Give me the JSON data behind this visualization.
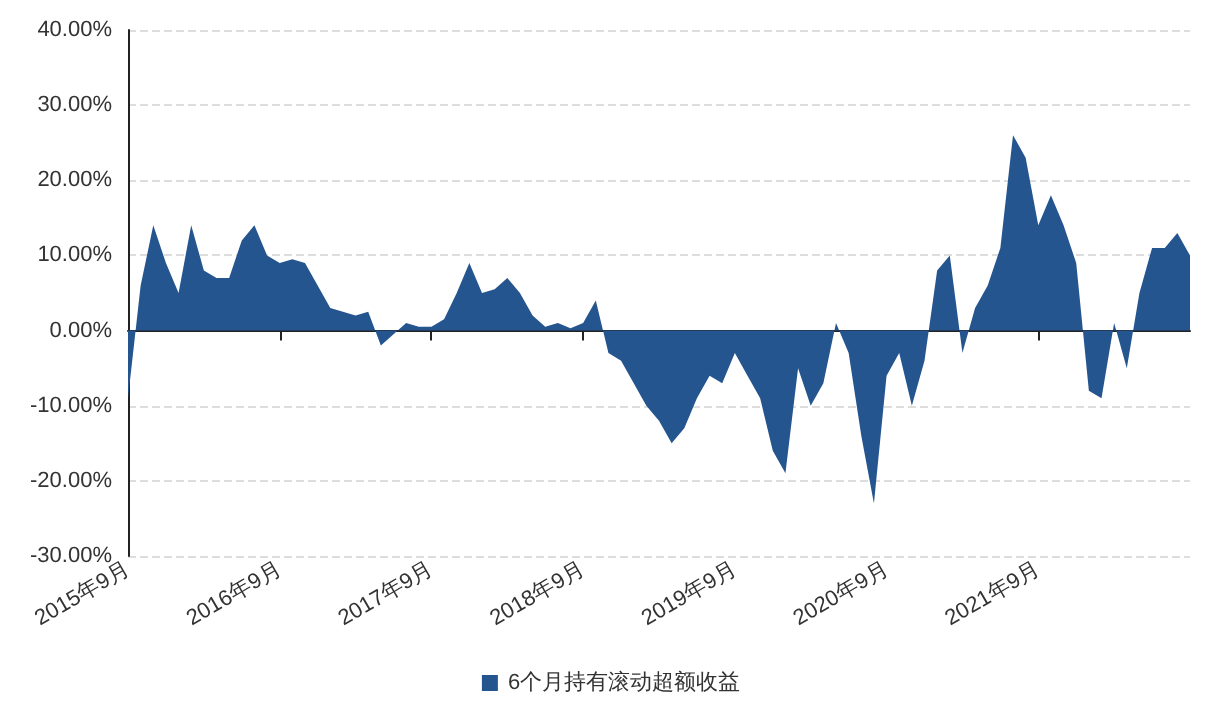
{
  "chart_data": {
    "type": "area",
    "categories": [
      "2015年9月",
      null,
      null,
      null,
      null,
      null,
      null,
      null,
      null,
      null,
      null,
      null,
      "2016年9月",
      null,
      null,
      null,
      null,
      null,
      null,
      null,
      null,
      null,
      null,
      null,
      "2017年9月",
      null,
      null,
      null,
      null,
      null,
      null,
      null,
      null,
      null,
      null,
      null,
      "2018年9月",
      null,
      null,
      null,
      null,
      null,
      null,
      null,
      null,
      null,
      null,
      null,
      "2019年9月",
      null,
      null,
      null,
      null,
      null,
      null,
      null,
      null,
      null,
      null,
      null,
      "2020年9月",
      null,
      null,
      null,
      null,
      null,
      null,
      null,
      null,
      null,
      null,
      null,
      "2021年9月",
      null,
      null,
      null,
      null,
      null,
      null,
      null,
      null,
      null,
      null,
      null,
      null
    ],
    "series": [
      {
        "name": "6个月持有滚动超额收益",
        "color": "#25558f",
        "values": [
          -9,
          6,
          14,
          9,
          5,
          14,
          8,
          7,
          7,
          12,
          14,
          10,
          9,
          9.5,
          9,
          6,
          3,
          2.5,
          2,
          2.5,
          -2,
          -0.5,
          1,
          0.5,
          0.5,
          1.5,
          5,
          9,
          5,
          5.5,
          7,
          5,
          2,
          0.5,
          1,
          0.3,
          1,
          4,
          -3,
          -4,
          -7,
          -10,
          -12,
          -15,
          -13,
          -9,
          -6,
          -7,
          -3,
          -6,
          -9,
          -16,
          -19,
          -5,
          -10,
          -7,
          1,
          -3,
          -14,
          -23,
          -6,
          -3,
          -10,
          -4,
          8,
          10,
          -3,
          3,
          6,
          11,
          26,
          23,
          14,
          18,
          14,
          9,
          -8,
          -9,
          1,
          -5,
          5,
          11,
          11,
          13,
          10
        ]
      }
    ],
    "ylim": [
      -30,
      40
    ],
    "yticks": [
      {
        "value": -30,
        "label": "-30.00%"
      },
      {
        "value": -20,
        "label": "-20.00%"
      },
      {
        "value": -10,
        "label": "-10.00%"
      },
      {
        "value": 0,
        "label": "0.00%"
      },
      {
        "value": 10,
        "label": "10.00%"
      },
      {
        "value": 20,
        "label": "20.00%"
      },
      {
        "value": 30,
        "label": "30.00%"
      },
      {
        "value": 40,
        "label": "40.00%"
      }
    ],
    "grid": "y",
    "legend": "bottom"
  }
}
